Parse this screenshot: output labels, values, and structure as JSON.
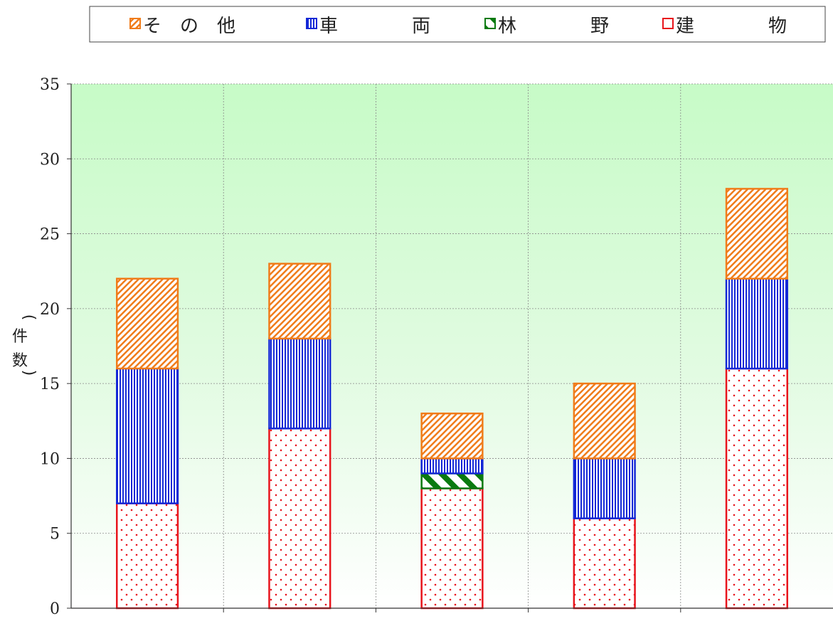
{
  "chart_data": {
    "type": "bar",
    "stacked": true,
    "categories": [
      "",
      "",
      "",
      "",
      ""
    ],
    "series": [
      {
        "name": "建　　物",
        "values": [
          7,
          12,
          8,
          6,
          16
        ],
        "color": "#e8141c",
        "pattern": "dots"
      },
      {
        "name": "林　　野",
        "values": [
          0,
          0,
          1,
          0,
          0
        ],
        "color": "#0a7a10",
        "pattern": "diagonal"
      },
      {
        "name": "車　　両",
        "values": [
          9,
          6,
          1,
          4,
          6
        ],
        "color": "#1428d6",
        "pattern": "vertical"
      },
      {
        "name": "そ の 他",
        "values": [
          6,
          5,
          3,
          5,
          6
        ],
        "color": "#f07c1a",
        "pattern": "hatch"
      }
    ],
    "legend_labels": {
      "other": "そ　の　他",
      "vehicle": "車　　　　両",
      "forest": "林　　　　野",
      "building": "建　　　　物"
    },
    "ylabel_chars": [
      "(",
      "件",
      "数",
      ")"
    ],
    "ylim": [
      0,
      35
    ],
    "yticks": [
      "0",
      "5",
      "10",
      "15",
      "20",
      "25",
      "30",
      "35"
    ],
    "grid": true,
    "legend_position": "top",
    "background": {
      "top": "#c7fbc7",
      "bottom": "#ffffff"
    }
  }
}
